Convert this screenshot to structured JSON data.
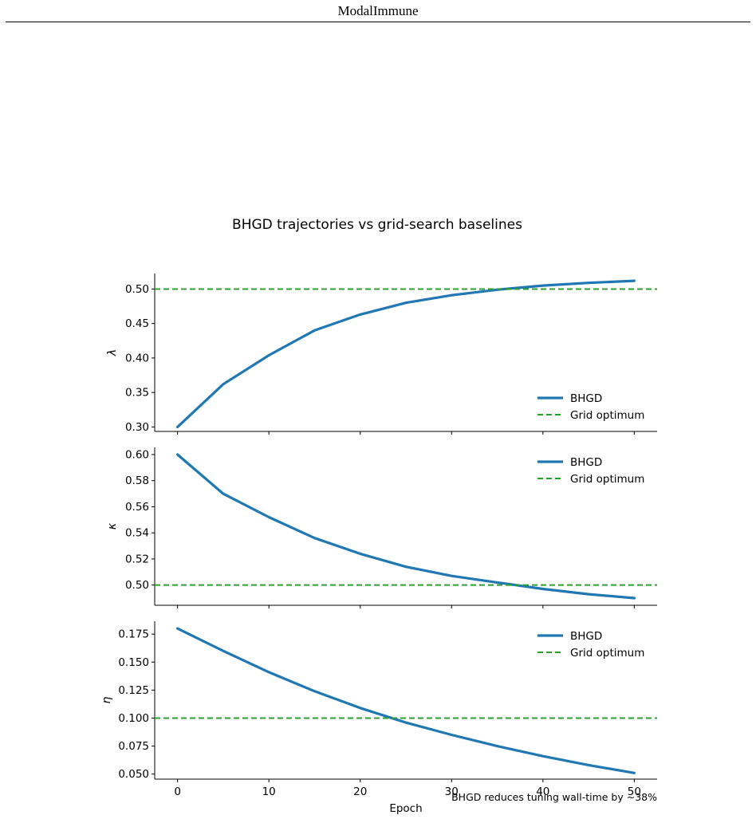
{
  "header": {
    "running_title": "ModalImmune"
  },
  "chart_data": {
    "type": "line",
    "title": "BHGD trajectories vs grid-search baselines",
    "xlabel": "Epoch",
    "annotation": "BHGD reduces tuning wall-time by ~38%",
    "x_ticks": [
      0,
      10,
      20,
      30,
      40,
      50
    ],
    "xlim": [
      -2.5,
      52.5
    ],
    "colors": {
      "bhgd": "#1f77b4",
      "grid": "#2ca02c"
    },
    "panels": [
      {
        "ylabel": "λ",
        "ylim": [
          0.2935,
          0.5225
        ],
        "y_ticks": [
          "0.30",
          "0.35",
          "0.40",
          "0.45",
          "0.50"
        ],
        "y_tick_values": [
          0.3,
          0.35,
          0.4,
          0.45,
          0.5
        ],
        "legend_position": "lower-right",
        "series": [
          {
            "name": "BHGD",
            "style": "solid",
            "x": [
              0,
              5,
              10,
              15,
              20,
              25,
              30,
              35,
              40,
              45,
              50
            ],
            "y": [
              0.3,
              0.362,
              0.404,
              0.44,
              0.463,
              0.48,
              0.491,
              0.499,
              0.505,
              0.509,
              0.512
            ]
          },
          {
            "name": "Grid optimum",
            "style": "dashed",
            "constant": 0.5
          }
        ]
      },
      {
        "ylabel": "κ",
        "ylim": [
          0.4845,
          0.6055
        ],
        "y_ticks": [
          "0.50",
          "0.52",
          "0.54",
          "0.56",
          "0.58",
          "0.60"
        ],
        "y_tick_values": [
          0.5,
          0.52,
          0.54,
          0.56,
          0.58,
          0.6
        ],
        "legend_position": "upper-right",
        "series": [
          {
            "name": "BHGD",
            "style": "solid",
            "x": [
              0,
              5,
              10,
              15,
              20,
              25,
              30,
              35,
              40,
              45,
              50
            ],
            "y": [
              0.6,
              0.57,
              0.552,
              0.536,
              0.524,
              0.514,
              0.507,
              0.502,
              0.497,
              0.493,
              0.49
            ]
          },
          {
            "name": "Grid optimum",
            "style": "dashed",
            "constant": 0.5
          }
        ]
      },
      {
        "ylabel": "η",
        "ylim": [
          0.0455,
          0.1865
        ],
        "y_ticks": [
          "0.050",
          "0.075",
          "0.100",
          "0.125",
          "0.150",
          "0.175"
        ],
        "y_tick_values": [
          0.05,
          0.075,
          0.1,
          0.125,
          0.15,
          0.175
        ],
        "legend_position": "upper-right",
        "series": [
          {
            "name": "BHGD",
            "style": "solid",
            "x": [
              0,
              5,
              10,
              15,
              20,
              25,
              30,
              35,
              40,
              45,
              50
            ],
            "y": [
              0.18,
              0.16,
              0.141,
              0.124,
              0.109,
              0.096,
              0.085,
              0.075,
              0.066,
              0.058,
              0.051
            ]
          },
          {
            "name": "Grid optimum",
            "style": "dashed",
            "constant": 0.1
          }
        ]
      }
    ]
  }
}
